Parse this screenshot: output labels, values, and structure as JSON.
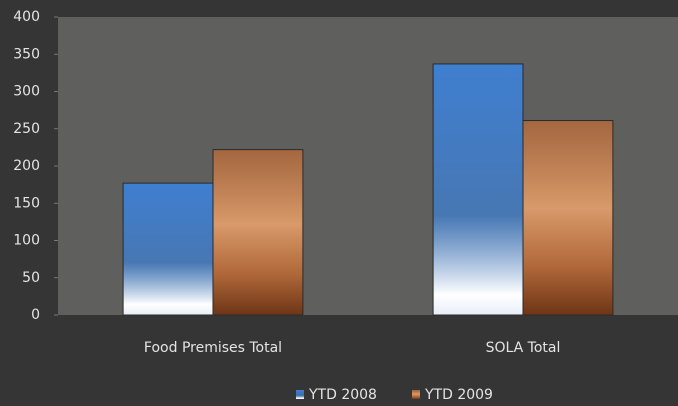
{
  "chart_data": {
    "type": "bar",
    "categories": [
      "Food Premises Total",
      "SOLA Total"
    ],
    "series": [
      {
        "name": "YTD 2008",
        "color": "#3f7fd0",
        "values": [
          177,
          337
        ]
      },
      {
        "name": "YTD 2009",
        "color": "#b0683a",
        "values": [
          222,
          261
        ]
      }
    ],
    "ylim": [
      0,
      400
    ],
    "yticks": [
      0,
      50,
      100,
      150,
      200,
      250,
      300,
      350,
      400
    ],
    "grid": false,
    "legend": "bottom"
  }
}
